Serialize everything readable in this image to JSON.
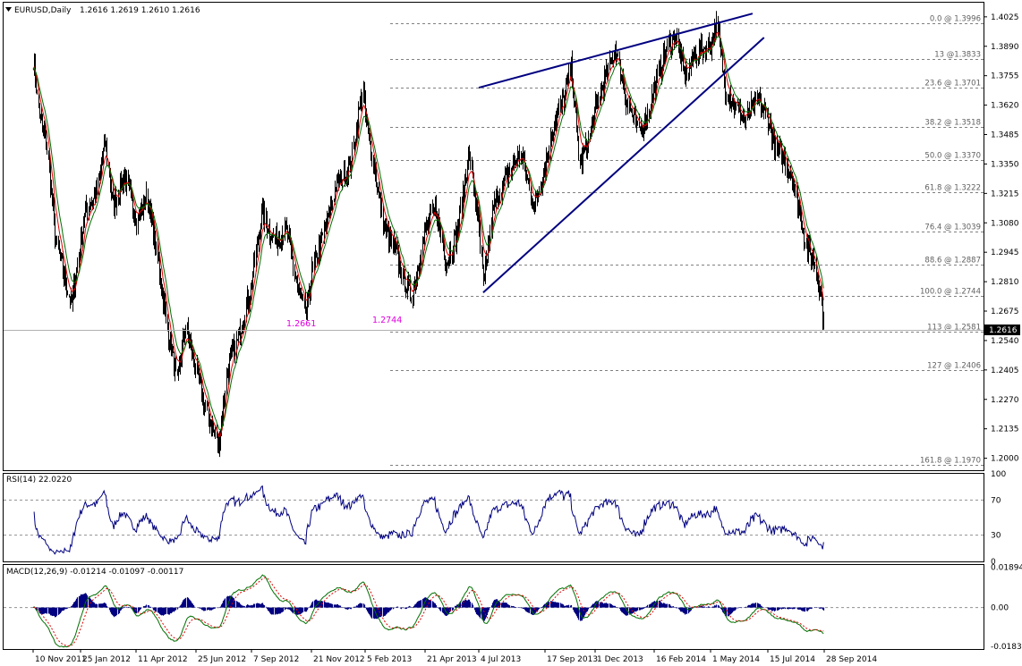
{
  "header": {
    "dropdown_icon": "triangle-down-icon",
    "symbol": "EURUSD,Daily",
    "ohlc": "1.2616 1.2619 1.2610 1.2616"
  },
  "colors": {
    "price_bars": "#000000",
    "ma_fast": "#e00000",
    "ma_slow": "#007000",
    "trendlines": "#000080",
    "rsi_line": "#000080",
    "macd_hist": "#000080",
    "macd_line": "#007000",
    "macd_signal": "#e00000",
    "annotation": "#e000e0",
    "price_box_bg": "#000000",
    "price_box_fg": "#ffffff"
  },
  "chart_data": [
    {
      "type": "candlestick",
      "title": "EURUSD,Daily",
      "ylim": [
        1.1945,
        1.409
      ],
      "y_ticks": [
        "1.4025",
        "1.3890",
        "1.3755",
        "1.3620",
        "1.3485",
        "1.3350",
        "1.3215",
        "1.3080",
        "1.2945",
        "1.2810",
        "1.2675",
        "1.2540",
        "1.2405",
        "1.2270",
        "1.2135",
        "1.2000"
      ],
      "x_ticks": [
        "10 Nov 2011",
        "25 Jan 2012",
        "11 Apr 2012",
        "25 Jun 2012",
        "7 Sep 2012",
        "21 Nov 2012",
        "5 Feb 2013",
        "21 Apr 2013",
        "4 Jul 2013",
        "17 Sep 2013",
        "1 Dec 2013",
        "16 Feb 2014",
        "1 May 2014",
        "15 Jul 2014",
        "28 Sep 2014"
      ],
      "current_price": "1.2616",
      "close_path": [
        [
          "10 Nov 2011",
          1.383
        ],
        [
          "20 Nov 2011",
          1.356
        ],
        [
          "1 Dec 2011",
          1.345
        ],
        [
          "15 Dec 2011",
          1.302
        ],
        [
          "28 Dec 2011",
          1.285
        ],
        [
          "10 Jan 2012",
          1.27
        ],
        [
          "20 Jan 2012",
          1.29
        ],
        [
          "1 Feb 2012",
          1.315
        ],
        [
          "15 Feb 2012",
          1.32
        ],
        [
          "28 Feb 2012",
          1.345
        ],
        [
          "10 Mar 2012",
          1.315
        ],
        [
          "25 Mar 2012",
          1.33
        ],
        [
          "11 Apr 2012",
          1.31
        ],
        [
          "25 Apr 2012",
          1.32
        ],
        [
          "5 May 2012",
          1.298
        ],
        [
          "20 May 2012",
          1.26
        ],
        [
          "1 Jun 2012",
          1.235
        ],
        [
          "12 Jun 2012",
          1.26
        ],
        [
          "25 Jun 2012",
          1.24
        ],
        [
          "10 Jul 2012",
          1.22
        ],
        [
          "25 Jul 2012",
          1.206
        ],
        [
          "5 Aug 2012",
          1.24
        ],
        [
          "20 Aug 2012",
          1.255
        ],
        [
          "7 Sep 2012",
          1.28
        ],
        [
          "20 Sep 2012",
          1.313
        ],
        [
          "5 Oct 2012",
          1.3
        ],
        [
          "20 Oct 2012",
          1.305
        ],
        [
          "5 Nov 2012",
          1.275
        ],
        [
          "14 Nov 2012",
          1.2661
        ],
        [
          "21 Nov 2012",
          1.285
        ],
        [
          "10 Dec 2012",
          1.305
        ],
        [
          "25 Dec 2012",
          1.325
        ],
        [
          "15 Jan 2013",
          1.335
        ],
        [
          "1 Feb 2013",
          1.37
        ],
        [
          "5 Feb 2013",
          1.355
        ],
        [
          "15 Feb 2013",
          1.335
        ],
        [
          "1 Mar 2013",
          1.305
        ],
        [
          "15 Mar 2013",
          1.295
        ],
        [
          "25 Mar 2013",
          1.281
        ],
        [
          "4 Apr 2013",
          1.2744
        ],
        [
          "21 Apr 2013",
          1.305
        ],
        [
          "5 May 2013",
          1.315
        ],
        [
          "20 May 2013",
          1.29
        ],
        [
          "5 Jun 2013",
          1.305
        ],
        [
          "20 Jun 2013",
          1.34
        ],
        [
          "4 Jul 2013",
          1.305
        ],
        [
          "9 Jul 2013",
          1.279
        ],
        [
          "20 Jul 2013",
          1.315
        ],
        [
          "5 Aug 2013",
          1.33
        ],
        [
          "20 Aug 2013",
          1.34
        ],
        [
          "5 Sep 2013",
          1.315
        ],
        [
          "17 Sep 2013",
          1.335
        ],
        [
          "1 Oct 2013",
          1.355
        ],
        [
          "15 Oct 2013",
          1.365
        ],
        [
          "25 Oct 2013",
          1.38
        ],
        [
          "8 Nov 2013",
          1.335
        ],
        [
          "20 Nov 2013",
          1.345
        ],
        [
          "1 Dec 2013",
          1.36
        ],
        [
          "15 Dec 2013",
          1.375
        ],
        [
          "27 Dec 2013",
          1.388
        ],
        [
          "10 Jan 2014",
          1.365
        ],
        [
          "25 Jan 2014",
          1.35
        ],
        [
          "5 Feb 2014",
          1.355
        ],
        [
          "16 Feb 2014",
          1.37
        ],
        [
          "1 Mar 2014",
          1.385
        ],
        [
          "15 Mar 2014",
          1.395
        ],
        [
          "28 Mar 2014",
          1.375
        ],
        [
          "10 Apr 2014",
          1.385
        ],
        [
          "1 May 2014",
          1.39
        ],
        [
          "8 May 2014",
          1.3996
        ],
        [
          "20 May 2014",
          1.37
        ],
        [
          "5 Jun 2014",
          1.36
        ],
        [
          "15 Jun 2014",
          1.355
        ],
        [
          "1 Jul 2014",
          1.365
        ],
        [
          "15 Jul 2014",
          1.355
        ],
        [
          "25 Jul 2014",
          1.342
        ],
        [
          "5 Aug 2014",
          1.338
        ],
        [
          "15 Aug 2014",
          1.33
        ],
        [
          "25 Aug 2014",
          1.315
        ],
        [
          "5 Sep 2014",
          1.295
        ],
        [
          "15 Sep 2014",
          1.29
        ],
        [
          "22 Sep 2014",
          1.278
        ],
        [
          "28 Sep 2014",
          1.2616
        ]
      ],
      "fib_levels": [
        {
          "label": "0.0 @ 1.3996",
          "price": 1.3996
        },
        {
          "label": "13 @1.3833",
          "price": 1.3833
        },
        {
          "label": "23.6 @ 1.3701",
          "price": 1.3701
        },
        {
          "label": "38.2 @ 1.3518",
          "price": 1.3518
        },
        {
          "label": "50.0 @ 1.3370",
          "price": 1.337
        },
        {
          "label": "61.8 @ 1.3222",
          "price": 1.3222
        },
        {
          "label": "76.4 @ 1.3039",
          "price": 1.3039
        },
        {
          "label": "88.6 @ 1.2887",
          "price": 1.2887
        },
        {
          "label": "100.0 @ 1.2744",
          "price": 1.2744
        },
        {
          "label": "113 @ 1.2581",
          "price": 1.2581
        },
        {
          "label": "127 @ 1.2406",
          "price": 1.2406
        },
        {
          "label": "161.8 @ 1.1970",
          "price": 1.197
        }
      ],
      "annotations": [
        "1.2661",
        "1.2744"
      ],
      "trendlines": [
        {
          "from": [
            "4 Jul 2013",
            1.37
          ],
          "to": [
            "25 Jun 2014",
            1.404
          ]
        },
        {
          "from": [
            "9 Jul 2013",
            1.276
          ],
          "to": [
            "10 Jul 2014",
            1.393
          ]
        }
      ]
    },
    {
      "type": "line",
      "title": "RSI(14) 22.0220",
      "ylim": [
        0,
        100
      ],
      "y_ticks": [
        "100",
        "70",
        "30",
        "0"
      ],
      "levels": [
        70,
        30
      ],
      "last_value": 22.022
    },
    {
      "type": "bar",
      "title": "MACD(12,26,9) -0.01214 -0.01097 -0.00117",
      "y_ticks": [
        "0.01894",
        "0.00",
        "-0.0183"
      ],
      "ylim": [
        -0.0195,
        0.02
      ],
      "last_values": [
        -0.01214,
        -0.01097,
        -0.00117
      ]
    }
  ]
}
